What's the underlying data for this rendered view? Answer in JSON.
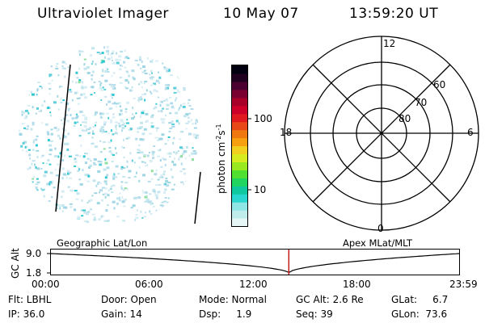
{
  "header": {
    "instrument": "Ultraviolet Imager",
    "date": "10 May 07",
    "time": "13:59:20 UT"
  },
  "colorbar": {
    "unit_label": "photon cm",
    "unit_exp1": "-2",
    "unit_mid": "s",
    "unit_exp2": "-1",
    "tick_100": "100",
    "tick_10": "10",
    "colors": [
      "#e6f6f6",
      "#c0ecec",
      "#8fe6e6",
      "#2cd6d0",
      "#10c8a0",
      "#20d460",
      "#50e030",
      "#9ae820",
      "#d6ec20",
      "#f2d020",
      "#f6a010",
      "#f07810",
      "#e84818",
      "#e01820",
      "#cc0028",
      "#a80028",
      "#7a0030",
      "#4a0030",
      "#200020",
      "#000010"
    ]
  },
  "polar": {
    "mlt_top": "12",
    "mlt_left": "18",
    "mlt_right": "6",
    "mlt_bottom": "0",
    "lat_60": "60",
    "lat_70": "70",
    "lat_80": "80"
  },
  "timeline": {
    "axis_label": "GC Alt",
    "y_high": "9.0",
    "y_low": "1.8",
    "left_title": "Geographic Lat/Lon",
    "right_title": "Apex MLat/MLT",
    "ticks": [
      "00:00",
      "06:00",
      "12:00",
      "18:00",
      "23:59"
    ],
    "current_fraction": 0.5828,
    "marker_color": "#c01010"
  },
  "status": {
    "flt": "Flt: LBHL",
    "ip": "IP: 36.0",
    "door": "Door: Open",
    "gain": "Gain: 14",
    "mode": "Mode: Normal",
    "dsp": "Dsp:     1.9",
    "gc_alt": "GC Alt: 2.6 Re",
    "seq": "Seq: 39",
    "glat": "GLat:     6.7",
    "glon": "GLon:  73.6"
  }
}
